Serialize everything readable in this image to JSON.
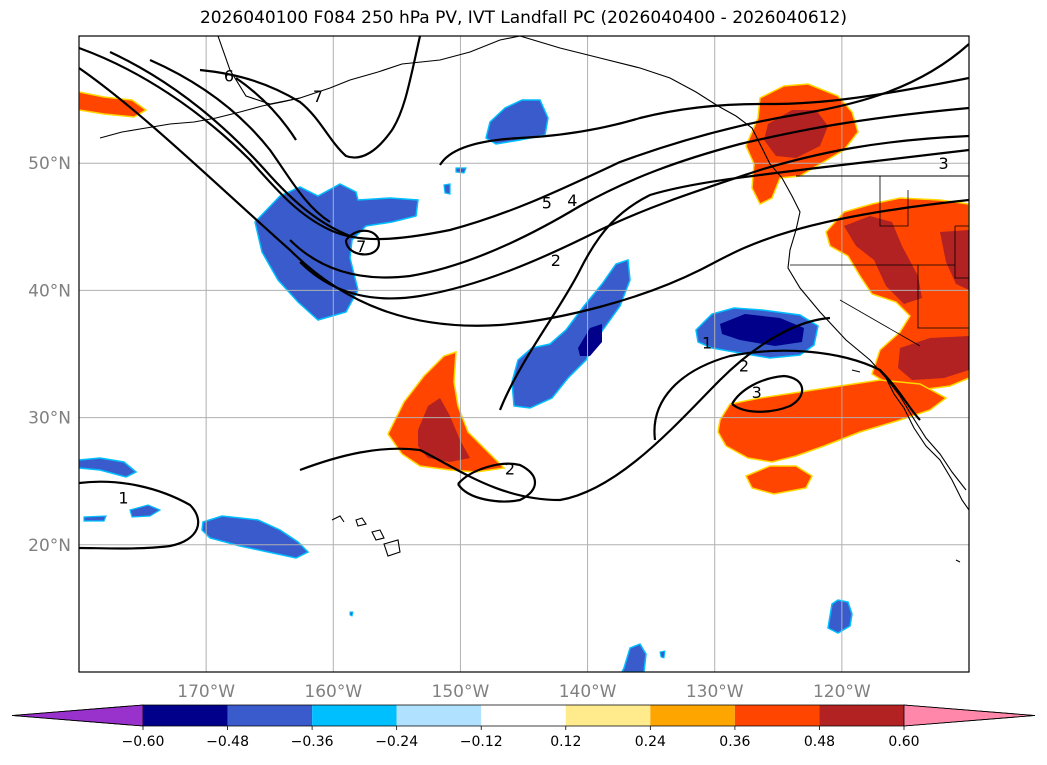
{
  "title": "2026040100 F084 250 hPa PV, IVT Landfall PC (2026040400 - 2026040612)",
  "map": {
    "lon_range": [
      -180,
      -110
    ],
    "lat_range": [
      10,
      60
    ],
    "lon_ticks": [
      {
        "lon": -170,
        "label": "170°W"
      },
      {
        "lon": -160,
        "label": "160°W"
      },
      {
        "lon": -150,
        "label": "150°W"
      },
      {
        "lon": -140,
        "label": "140°W"
      },
      {
        "lon": -130,
        "label": "130°W"
      },
      {
        "lon": -120,
        "label": "120°W"
      }
    ],
    "lat_ticks": [
      {
        "lat": 50,
        "label": "50°N"
      },
      {
        "lat": 40,
        "label": "40°N"
      },
      {
        "lat": 30,
        "label": "30°N"
      },
      {
        "lat": 20,
        "label": "20°N"
      }
    ],
    "gridlines": true,
    "contour_labels": [
      {
        "text": "6",
        "lon": -168.2,
        "lat": 56.9
      },
      {
        "text": "7",
        "lon": -161.2,
        "lat": 55.3
      },
      {
        "text": "5",
        "lon": -143.2,
        "lat": 46.9
      },
      {
        "text": "4",
        "lon": -141.2,
        "lat": 47.1
      },
      {
        "text": "2",
        "lon": -142.5,
        "lat": 42.4
      },
      {
        "text": "7",
        "lon": -157.8,
        "lat": 43.5
      },
      {
        "text": "3",
        "lon": -112.0,
        "lat": 50.0
      },
      {
        "text": "1",
        "lon": -130.6,
        "lat": 35.9
      },
      {
        "text": "2",
        "lon": -127.7,
        "lat": 34.1
      },
      {
        "text": "3",
        "lon": -126.7,
        "lat": 32.0
      },
      {
        "text": "2",
        "lon": -146.1,
        "lat": 26.0
      },
      {
        "text": "1",
        "lon": -176.5,
        "lat": 23.7
      }
    ]
  },
  "colorbar": {
    "colors": [
      "#9932cc",
      "#00008b",
      "#3a5bcc",
      "#00bfff",
      "#b0e2ff",
      "#ffffff",
      "#ffeb8c",
      "#ffa500",
      "#ff4500",
      "#b22222",
      "#ff88aa"
    ],
    "tick_labels": [
      "−0.60",
      "−0.48",
      "−0.36",
      "−0.24",
      "−0.12",
      "0.12",
      "0.24",
      "0.36",
      "0.48",
      "0.60"
    ]
  }
}
